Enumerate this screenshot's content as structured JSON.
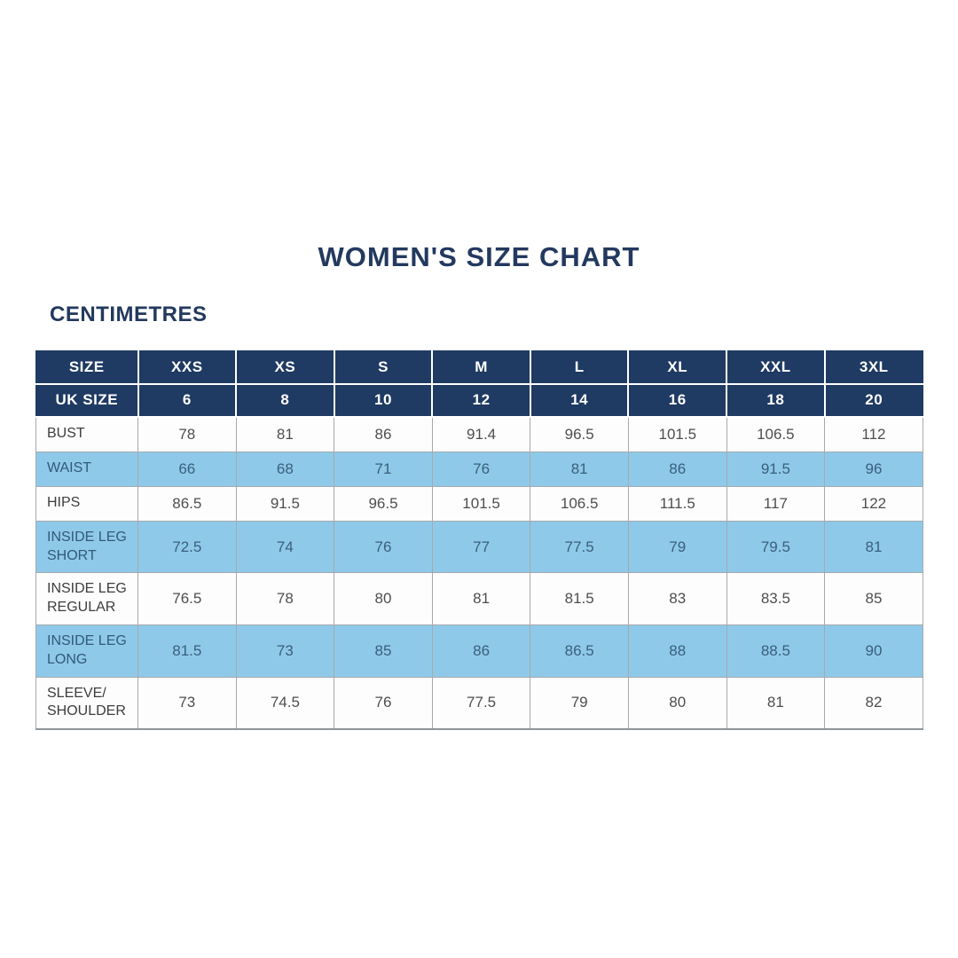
{
  "title": "WOMEN'S SIZE CHART",
  "subtitle": "CENTIMETRES",
  "colors": {
    "header_bg": "#1f3a63",
    "header_text": "#ffffff",
    "stripe_bg": "#8ec9e9",
    "stripe_text": "#3b5f7c",
    "body_text": "#4e4e4e",
    "title_text": "#23395e",
    "grid_line": "#a6aaad"
  },
  "chart_data": {
    "type": "table",
    "title": "WOMEN'S SIZE CHART",
    "units_label": "CENTIMETRES",
    "header_rows": [
      {
        "key": "size",
        "label": "SIZE",
        "values": [
          "XXS",
          "XS",
          "S",
          "M",
          "L",
          "XL",
          "XXL",
          "3XL"
        ]
      },
      {
        "key": "uk-size",
        "label": "UK SIZE",
        "values": [
          "6",
          "8",
          "10",
          "12",
          "14",
          "16",
          "18",
          "20"
        ]
      }
    ],
    "rows": [
      {
        "key": "bust",
        "label": "BUST",
        "highlighted": false,
        "values": [
          "78",
          "81",
          "86",
          "91.4",
          "96.5",
          "101.5",
          "106.5",
          "112"
        ]
      },
      {
        "key": "waist",
        "label": "WAIST",
        "highlighted": true,
        "values": [
          "66",
          "68",
          "71",
          "76",
          "81",
          "86",
          "91.5",
          "96"
        ]
      },
      {
        "key": "hips",
        "label": "HIPS",
        "highlighted": false,
        "values": [
          "86.5",
          "91.5",
          "96.5",
          "101.5",
          "106.5",
          "111.5",
          "117",
          "122"
        ]
      },
      {
        "key": "inside-leg-short",
        "label": "INSIDE LEG SHORT",
        "highlighted": true,
        "values": [
          "72.5",
          "74",
          "76",
          "77",
          "77.5",
          "79",
          "79.5",
          "81"
        ]
      },
      {
        "key": "inside-leg-regular",
        "label": "INSIDE LEG REGULAR",
        "highlighted": false,
        "values": [
          "76.5",
          "78",
          "80",
          "81",
          "81.5",
          "83",
          "83.5",
          "85"
        ]
      },
      {
        "key": "inside-leg-long",
        "label": "INSIDE LEG LONG",
        "highlighted": true,
        "values": [
          "81.5",
          "73",
          "85",
          "86",
          "86.5",
          "88",
          "88.5",
          "90"
        ]
      },
      {
        "key": "sleeve-shoulder",
        "label": "SLEEVE/ SHOULDER",
        "highlighted": false,
        "values": [
          "73",
          "74.5",
          "76",
          "77.5",
          "79",
          "80",
          "81",
          "82"
        ]
      }
    ]
  }
}
